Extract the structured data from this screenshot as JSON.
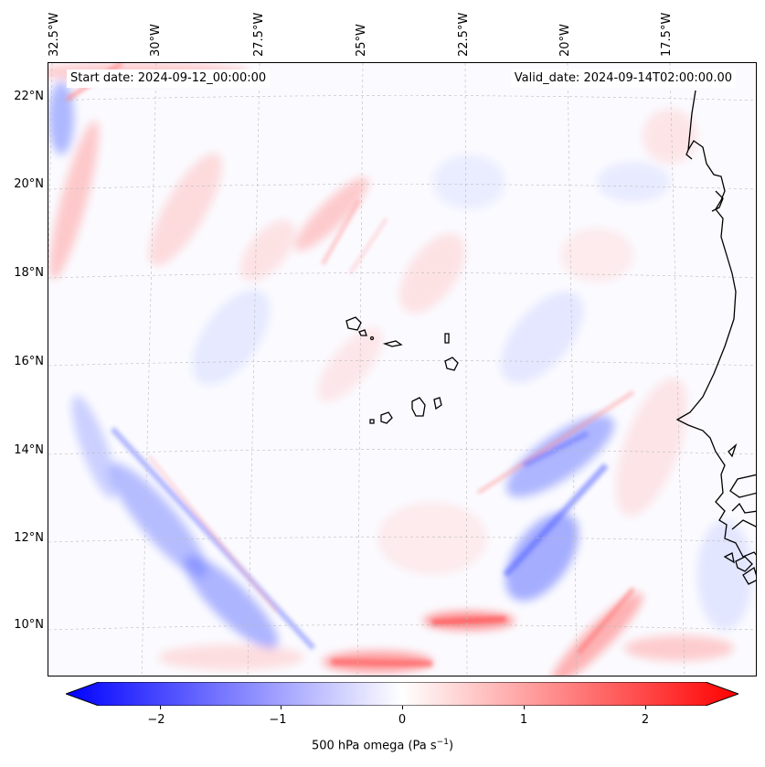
{
  "header": {
    "start_date": "Start date: 2024-09-12_00:00:00",
    "valid_date": "Valid_date: 2024-09-14T02:00:00.00"
  },
  "map": {
    "lon_labels": [
      "32.5°W",
      "30°W",
      "27.5°W",
      "25°W",
      "22.5°W",
      "20°W",
      "17.5°W"
    ],
    "lat_labels": [
      "22°N",
      "20°N",
      "18°N",
      "16°N",
      "14°N",
      "12°N",
      "10°N"
    ],
    "variable": "500 hPa omega",
    "colormap": "bwr",
    "colors": {
      "negative": "#0000ff",
      "zero": "#ffffff",
      "positive": "#ff0000",
      "coast": "#000000",
      "grid": "#bbbbbb"
    }
  },
  "colorbar": {
    "ticks": [
      "−2",
      "−1",
      "0",
      "1",
      "2"
    ],
    "tick_values": [
      -2,
      -1,
      0,
      1,
      2
    ],
    "range": [
      -2.5,
      2.5
    ],
    "extend": "both",
    "label": "500 hPa omega (Pa s",
    "label_exp": "−1",
    "label_end": ")"
  }
}
